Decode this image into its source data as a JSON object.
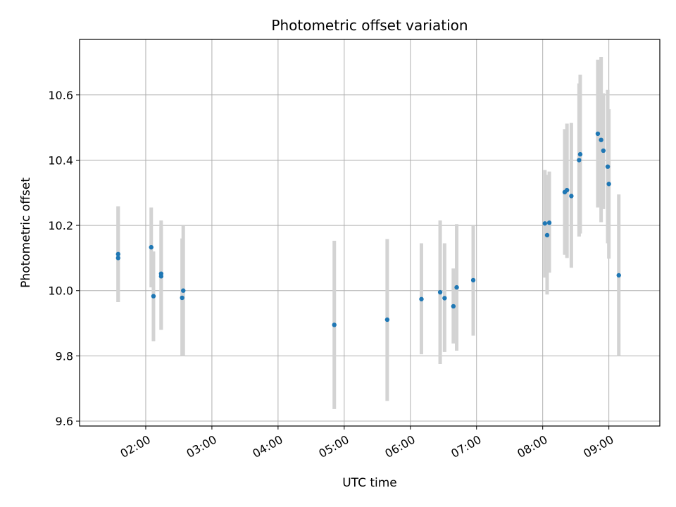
{
  "chart_data": {
    "type": "scatter",
    "title": "Photometric offset variation",
    "xlabel": "UTC time",
    "ylabel": "Photometric offset",
    "x_unit": "UTC hours",
    "xlim": [
      1.0,
      9.77
    ],
    "ylim": [
      9.585,
      10.77
    ],
    "x_ticks": [
      {
        "value": 2.0,
        "label": "02:00"
      },
      {
        "value": 3.0,
        "label": "03:00"
      },
      {
        "value": 4.0,
        "label": "04:00"
      },
      {
        "value": 5.0,
        "label": "05:00"
      },
      {
        "value": 6.0,
        "label": "06:00"
      },
      {
        "value": 7.0,
        "label": "07:00"
      },
      {
        "value": 8.0,
        "label": "08:00"
      },
      {
        "value": 9.0,
        "label": "09:00"
      }
    ],
    "y_ticks": [
      {
        "value": 9.6,
        "label": "9.6"
      },
      {
        "value": 9.8,
        "label": "9.8"
      },
      {
        "value": 10.0,
        "label": "10.0"
      },
      {
        "value": 10.2,
        "label": "10.2"
      },
      {
        "value": 10.4,
        "label": "10.4"
      },
      {
        "value": 10.6,
        "label": "10.6"
      }
    ],
    "grid": true,
    "colors": {
      "point": "#1f77b4",
      "errorbar": "#d3d3d3",
      "grid": "#b0b0b0"
    },
    "points": [
      {
        "x": 1.583,
        "y": 10.112,
        "ylo": 9.965,
        "yhi": 10.258
      },
      {
        "x": 1.583,
        "y": 10.1,
        "ylo": 9.965,
        "yhi": 10.258
      },
      {
        "x": 2.083,
        "y": 10.133,
        "ylo": 10.01,
        "yhi": 10.255
      },
      {
        "x": 2.117,
        "y": 9.983,
        "ylo": 9.845,
        "yhi": 10.12
      },
      {
        "x": 2.233,
        "y": 10.052,
        "ylo": 9.88,
        "yhi": 10.215
      },
      {
        "x": 2.233,
        "y": 10.044,
        "ylo": 9.88,
        "yhi": 10.195
      },
      {
        "x": 2.55,
        "y": 9.978,
        "ylo": 9.8,
        "yhi": 10.16
      },
      {
        "x": 2.567,
        "y": 10.0,
        "ylo": 9.8,
        "yhi": 10.198
      },
      {
        "x": 4.85,
        "y": 9.895,
        "ylo": 9.637,
        "yhi": 10.153
      },
      {
        "x": 5.65,
        "y": 9.911,
        "ylo": 9.662,
        "yhi": 10.158
      },
      {
        "x": 6.167,
        "y": 9.974,
        "ylo": 9.805,
        "yhi": 10.145
      },
      {
        "x": 6.45,
        "y": 9.995,
        "ylo": 9.775,
        "yhi": 10.215
      },
      {
        "x": 6.517,
        "y": 9.977,
        "ylo": 9.812,
        "yhi": 10.145
      },
      {
        "x": 6.65,
        "y": 9.952,
        "ylo": 9.838,
        "yhi": 10.068
      },
      {
        "x": 6.7,
        "y": 10.01,
        "ylo": 9.816,
        "yhi": 10.204
      },
      {
        "x": 6.95,
        "y": 10.032,
        "ylo": 9.862,
        "yhi": 10.2
      },
      {
        "x": 8.033,
        "y": 10.206,
        "ylo": 10.04,
        "yhi": 10.37
      },
      {
        "x": 8.067,
        "y": 10.17,
        "ylo": 9.988,
        "yhi": 10.355
      },
      {
        "x": 8.1,
        "y": 10.208,
        "ylo": 10.055,
        "yhi": 10.365
      },
      {
        "x": 8.333,
        "y": 10.302,
        "ylo": 10.11,
        "yhi": 10.495
      },
      {
        "x": 8.367,
        "y": 10.308,
        "ylo": 10.1,
        "yhi": 10.512
      },
      {
        "x": 8.433,
        "y": 10.29,
        "ylo": 10.07,
        "yhi": 10.514
      },
      {
        "x": 8.55,
        "y": 10.4,
        "ylo": 10.166,
        "yhi": 10.635
      },
      {
        "x": 8.567,
        "y": 10.418,
        "ylo": 10.175,
        "yhi": 10.662
      },
      {
        "x": 8.833,
        "y": 10.481,
        "ylo": 10.255,
        "yhi": 10.708
      },
      {
        "x": 8.883,
        "y": 10.462,
        "ylo": 10.21,
        "yhi": 10.716
      },
      {
        "x": 8.917,
        "y": 10.429,
        "ylo": 10.25,
        "yhi": 10.605
      },
      {
        "x": 8.983,
        "y": 10.38,
        "ylo": 10.145,
        "yhi": 10.615
      },
      {
        "x": 9.0,
        "y": 10.327,
        "ylo": 10.098,
        "yhi": 10.556
      },
      {
        "x": 9.15,
        "y": 10.047,
        "ylo": 9.8,
        "yhi": 10.295
      }
    ]
  }
}
